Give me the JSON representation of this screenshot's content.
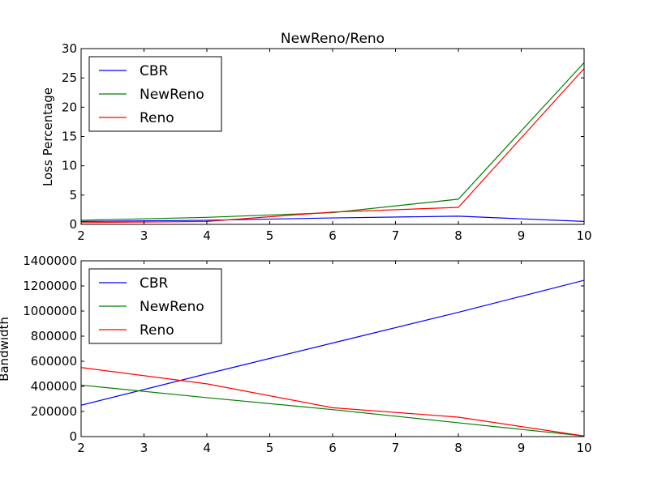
{
  "chart_data": [
    {
      "type": "line",
      "title": "NewReno/Reno",
      "xlabel": "",
      "ylabel": "Loss Percentage",
      "xlim": [
        2,
        10
      ],
      "ylim": [
        0,
        30
      ],
      "xticks": [
        2,
        3,
        4,
        5,
        6,
        7,
        8,
        9,
        10
      ],
      "yticks": [
        0,
        5,
        10,
        15,
        20,
        25,
        30
      ],
      "ytick_labels": [
        "0",
        "5",
        "10",
        "15",
        "20",
        "25",
        "30"
      ],
      "grid": false,
      "legend_position": "top-left",
      "x": [
        2,
        4,
        6,
        8,
        10
      ],
      "series": [
        {
          "name": "CBR",
          "color": "#0000ff",
          "values": [
            0.5,
            0.7,
            1.1,
            1.4,
            0.5
          ]
        },
        {
          "name": "NewReno",
          "color": "#008000",
          "values": [
            0.7,
            1.2,
            2.0,
            4.3,
            27.6
          ]
        },
        {
          "name": "Reno",
          "color": "#ff0000",
          "values": [
            0.3,
            0.5,
            2.1,
            2.9,
            26.6
          ]
        }
      ]
    },
    {
      "type": "line",
      "title": "",
      "xlabel": "",
      "ylabel": "Bandwidth",
      "xlim": [
        2,
        10
      ],
      "ylim": [
        0,
        1400000
      ],
      "xticks": [
        2,
        3,
        4,
        5,
        6,
        7,
        8,
        9,
        10
      ],
      "yticks": [
        0,
        200000,
        400000,
        600000,
        800000,
        1000000,
        1200000,
        1400000
      ],
      "ytick_labels": [
        "0",
        "200000",
        "400000",
        "600000",
        "800000",
        "1000000",
        "1200000",
        "1400000"
      ],
      "grid": false,
      "legend_position": "top-left",
      "x": [
        2,
        4,
        6,
        8,
        10
      ],
      "series": [
        {
          "name": "CBR",
          "color": "#0000ff",
          "values": [
            250000,
            500000,
            745000,
            990000,
            1245000
          ]
        },
        {
          "name": "NewReno",
          "color": "#008000",
          "values": [
            410000,
            310000,
            215000,
            110000,
            5000
          ]
        },
        {
          "name": "Reno",
          "color": "#ff0000",
          "values": [
            550000,
            420000,
            230000,
            155000,
            5000
          ]
        }
      ]
    }
  ]
}
